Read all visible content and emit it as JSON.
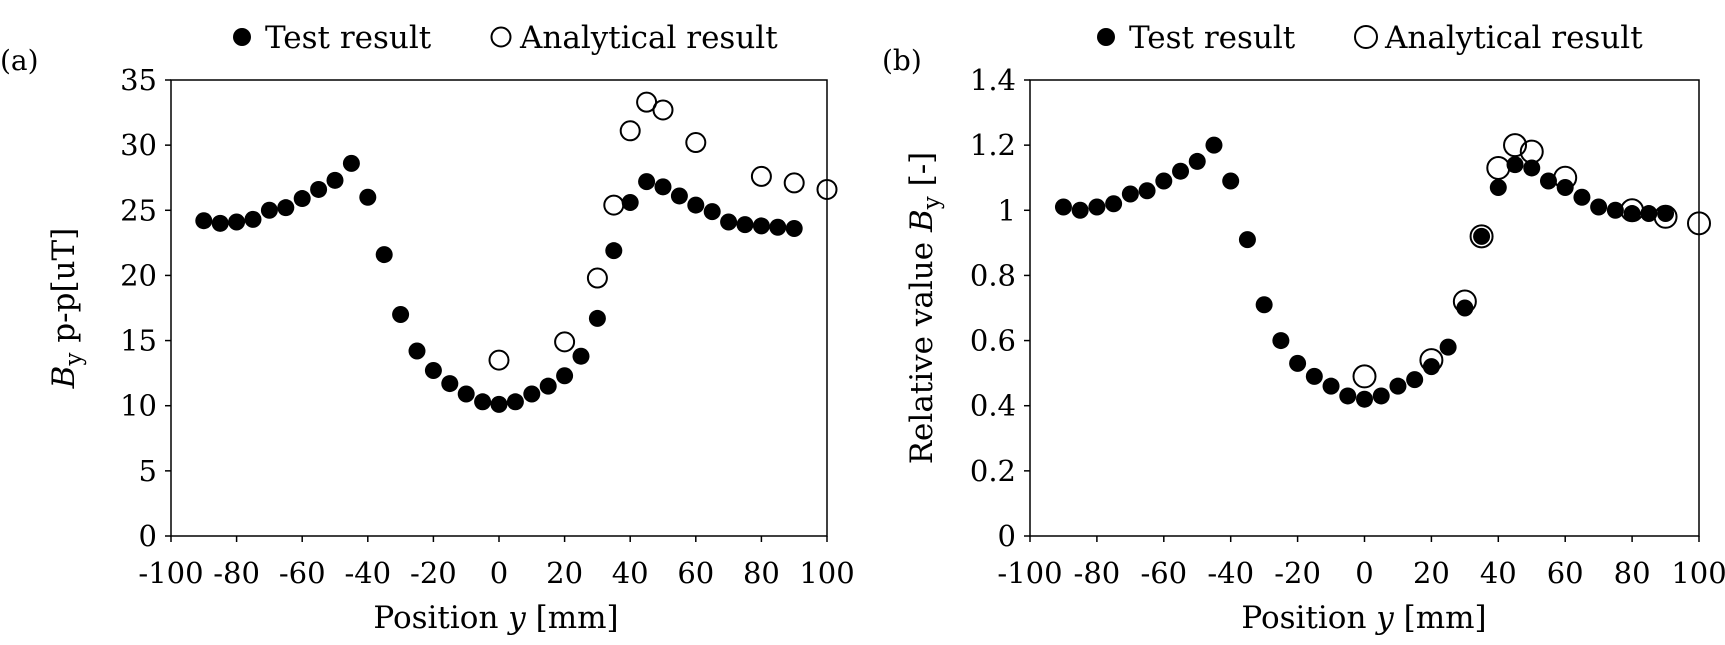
{
  "chart_data": [
    {
      "panel": "(a)",
      "type": "scatter",
      "ylabel_var": "B",
      "ylabel_sub": "y",
      "ylabel_rest": " p-p[uT]",
      "xlabel_pre": "Position ",
      "xlabel_var": "y",
      "xlabel_post": " [mm]",
      "xlim": [
        -100,
        100
      ],
      "ylim": [
        0,
        35
      ],
      "xticks": [
        "-100",
        "-80",
        "-60",
        "-40",
        "-20",
        "0",
        "20",
        "40",
        "60",
        "80",
        "100"
      ],
      "yticks": [
        "0",
        "5",
        "10",
        "15",
        "20",
        "25",
        "30",
        "35"
      ],
      "legend_position": "top",
      "grid": false,
      "series": [
        {
          "name": "Test result",
          "marker": "filled-circle",
          "x": [
            -90,
            -85,
            -80,
            -75,
            -70,
            -65,
            -60,
            -55,
            -50,
            -45,
            -40,
            -35,
            -30,
            -25,
            -20,
            -15,
            -10,
            -5,
            0,
            5,
            10,
            15,
            20,
            25,
            30,
            35,
            40,
            45,
            50,
            55,
            60,
            65,
            70,
            75,
            80,
            85,
            90
          ],
          "y": [
            24.2,
            24.0,
            24.1,
            24.3,
            25.0,
            25.2,
            25.9,
            26.6,
            27.3,
            28.6,
            26.0,
            21.6,
            17.0,
            14.2,
            12.7,
            11.7,
            10.9,
            10.3,
            10.1,
            10.3,
            10.9,
            11.5,
            12.3,
            13.8,
            16.7,
            21.9,
            25.6,
            27.2,
            26.8,
            26.1,
            25.4,
            24.9,
            24.1,
            23.9,
            23.8,
            23.7,
            23.6
          ]
        },
        {
          "name": "Analytical result",
          "marker": "open-circle",
          "x": [
            0,
            20,
            30,
            35,
            40,
            45,
            50,
            60,
            80,
            90,
            100
          ],
          "y": [
            13.5,
            14.9,
            19.8,
            25.4,
            31.1,
            33.3,
            32.7,
            30.2,
            27.6,
            27.1,
            26.6
          ]
        }
      ]
    },
    {
      "panel": "(b)",
      "type": "scatter",
      "ylabel_pre": "Relative value ",
      "ylabel_var": "B",
      "ylabel_sub": "y",
      "ylabel_rest": " [-]",
      "xlabel_pre": "Position ",
      "xlabel_var": "y",
      "xlabel_post": " [mm]",
      "xlim": [
        -100,
        100
      ],
      "ylim": [
        0,
        1.4
      ],
      "xticks": [
        "-100",
        "-80",
        "-60",
        "-40",
        "-20",
        "0",
        "20",
        "40",
        "60",
        "80",
        "100"
      ],
      "yticks": [
        "0",
        "0.2",
        "0.4",
        "0.6",
        "0.8",
        "1",
        "1.2",
        "1.4"
      ],
      "legend_position": "top",
      "grid": false,
      "series": [
        {
          "name": "Test result",
          "marker": "filled-circle",
          "x": [
            -90,
            -85,
            -80,
            -75,
            -70,
            -65,
            -60,
            -55,
            -50,
            -45,
            -40,
            -35,
            -30,
            -25,
            -20,
            -15,
            -10,
            -5,
            0,
            5,
            10,
            15,
            20,
            25,
            30,
            35,
            40,
            45,
            50,
            55,
            60,
            65,
            70,
            75,
            80,
            85,
            90
          ],
          "y": [
            1.01,
            1.0,
            1.01,
            1.02,
            1.05,
            1.06,
            1.09,
            1.12,
            1.15,
            1.2,
            1.09,
            0.91,
            0.71,
            0.6,
            0.53,
            0.49,
            0.46,
            0.43,
            0.42,
            0.43,
            0.46,
            0.48,
            0.52,
            0.58,
            0.7,
            0.92,
            1.07,
            1.14,
            1.13,
            1.09,
            1.07,
            1.04,
            1.01,
            1.0,
            0.99,
            0.99,
            0.99
          ]
        },
        {
          "name": "Analytical result",
          "marker": "open-circle",
          "x": [
            0,
            20,
            30,
            35,
            40,
            45,
            50,
            60,
            80,
            90,
            100
          ],
          "y": [
            0.49,
            0.54,
            0.72,
            0.92,
            1.13,
            1.2,
            1.18,
            1.1,
            1.0,
            0.98,
            0.96
          ]
        }
      ]
    }
  ]
}
